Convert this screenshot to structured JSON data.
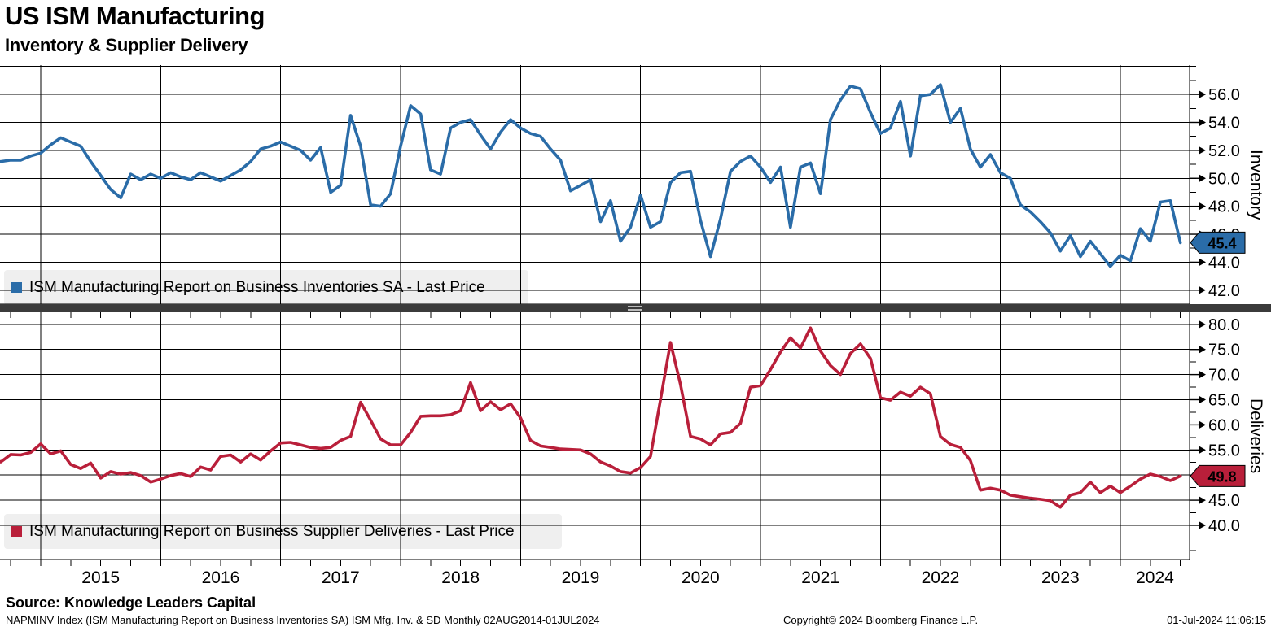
{
  "header": {
    "title": "US ISM Manufacturing",
    "subtitle": "Inventory & Supplier Delivery"
  },
  "source_line": "Source: Knowledge Leaders Capital",
  "footer": {
    "left": "NAPMINV Index (ISM Manufacturing Report on Business Inventories SA) ISM Mfg. Inv. & SD  Monthly 02AUG2014-01JUL2024",
    "center": "Copyright© 2024 Bloomberg Finance L.P.",
    "right": "01-Jul-2024 11:06:15"
  },
  "colors": {
    "inventory_line": "#2A6CA8",
    "deliveries_line": "#B91F3A",
    "grid": "#000000",
    "divider": "#3b3b3b",
    "legend_background": "#efefef",
    "badge_text": "#ffffff"
  },
  "x_axis": {
    "years": [
      "2015",
      "2016",
      "2017",
      "2018",
      "2019",
      "2020",
      "2021",
      "2022",
      "2023",
      "2024"
    ],
    "frequency": "Monthly",
    "range": "02AUG2014-01JUL2024"
  },
  "chart_data": [
    {
      "type": "line",
      "pane": "top",
      "axis_title": "Inventory",
      "legend": "ISM Manufacturing Report on Business Inventories SA - Last Price",
      "color": "#2A6CA8",
      "last_price": "45.4",
      "ticks": [
        56,
        54,
        52,
        50,
        48,
        46,
        44,
        42
      ],
      "grid_values": [
        58,
        56,
        54,
        52,
        50,
        48,
        46,
        44,
        42
      ],
      "minor_tick_step": 1.0,
      "ylim": [
        41.0,
        58.1
      ],
      "x_start": "Aug 2014",
      "x_end": "Jul 2024",
      "values": [
        51.1,
        51.2,
        51.3,
        51.3,
        51.6,
        51.8,
        52.4,
        52.9,
        52.6,
        52.3,
        51.2,
        50.2,
        49.2,
        48.6,
        50.3,
        49.9,
        50.3,
        50.0,
        50.4,
        50.1,
        49.9,
        50.4,
        50.1,
        49.8,
        50.2,
        50.6,
        51.2,
        52.1,
        52.3,
        52.6,
        52.3,
        52.0,
        51.3,
        52.2,
        49.0,
        49.5,
        54.5,
        52.3,
        48.1,
        48.0,
        48.9,
        52.3,
        55.2,
        54.6,
        50.6,
        50.3,
        53.6,
        54.0,
        54.2,
        53.1,
        52.1,
        53.3,
        54.2,
        53.6,
        53.2,
        53.0,
        52.1,
        51.3,
        49.1,
        49.5,
        49.9,
        46.9,
        48.4,
        45.5,
        46.5,
        48.8,
        46.5,
        46.9,
        49.7,
        50.4,
        50.5,
        47.0,
        44.4,
        47.1,
        50.5,
        51.2,
        51.6,
        50.8,
        49.7,
        50.8,
        46.5,
        50.8,
        51.1,
        48.9,
        54.2,
        55.6,
        56.6,
        56.4,
        54.7,
        53.2,
        53.6,
        55.5,
        51.6,
        55.9,
        56.0,
        56.7,
        54.0,
        55.0,
        52.1,
        50.8,
        51.7,
        50.4,
        50.0,
        48.1,
        47.6,
        46.9,
        46.1,
        44.8,
        45.9,
        44.4,
        45.5,
        44.6,
        43.7,
        44.5,
        44.1,
        46.4,
        45.5,
        48.3,
        48.4,
        45.4
      ]
    },
    {
      "type": "line",
      "pane": "bottom",
      "axis_title": "Deliveries",
      "legend": "ISM Manufacturing Report on Business Supplier Deliveries - Last Price",
      "color": "#B91F3A",
      "last_price": "49.8",
      "ticks": [
        80,
        75,
        70,
        65,
        60,
        55,
        50,
        45,
        40
      ],
      "grid_values": [
        80,
        75,
        70,
        65,
        60,
        55,
        50,
        45,
        40
      ],
      "minor_tick_step": 2.5,
      "ylim": [
        33.2,
        82.4
      ],
      "x_start": "Aug 2014",
      "x_end": "Jul 2024",
      "values": [
        53.7,
        52.6,
        54.1,
        54.0,
        54.5,
        56.2,
        54.2,
        54.8,
        52.1,
        51.3,
        52.4,
        49.4,
        50.7,
        50.2,
        50.5,
        49.9,
        48.6,
        49.2,
        49.9,
        50.3,
        49.7,
        51.6,
        51.0,
        53.7,
        54.0,
        52.6,
        54.2,
        53.0,
        54.8,
        56.4,
        56.5,
        56.0,
        55.5,
        55.3,
        55.5,
        56.9,
        57.7,
        64.5,
        60.9,
        57.2,
        56.0,
        56.0,
        58.5,
        61.7,
        61.8,
        61.8,
        62.0,
        62.8,
        68.4,
        62.8,
        64.6,
        63.0,
        64.2,
        61.4,
        56.9,
        55.8,
        55.5,
        55.2,
        55.1,
        55.0,
        54.2,
        52.6,
        51.8,
        50.7,
        50.4,
        51.5,
        53.7,
        65.0,
        76.4,
        68.0,
        57.7,
        57.2,
        56.0,
        58.2,
        58.5,
        60.3,
        67.5,
        67.8,
        71.0,
        74.5,
        77.3,
        75.3,
        79.3,
        74.7,
        71.8,
        70.0,
        74.2,
        76.1,
        73.2,
        65.4,
        64.9,
        66.5,
        65.7,
        67.5,
        66.2,
        57.7,
        56.1,
        55.5,
        52.9,
        47.0,
        47.4,
        47.0,
        46.0,
        45.7,
        45.4,
        45.2,
        44.9,
        43.6,
        46.0,
        46.5,
        48.6,
        46.5,
        47.8,
        46.5,
        47.8,
        49.2,
        50.2,
        49.7,
        48.9,
        49.8
      ]
    }
  ]
}
